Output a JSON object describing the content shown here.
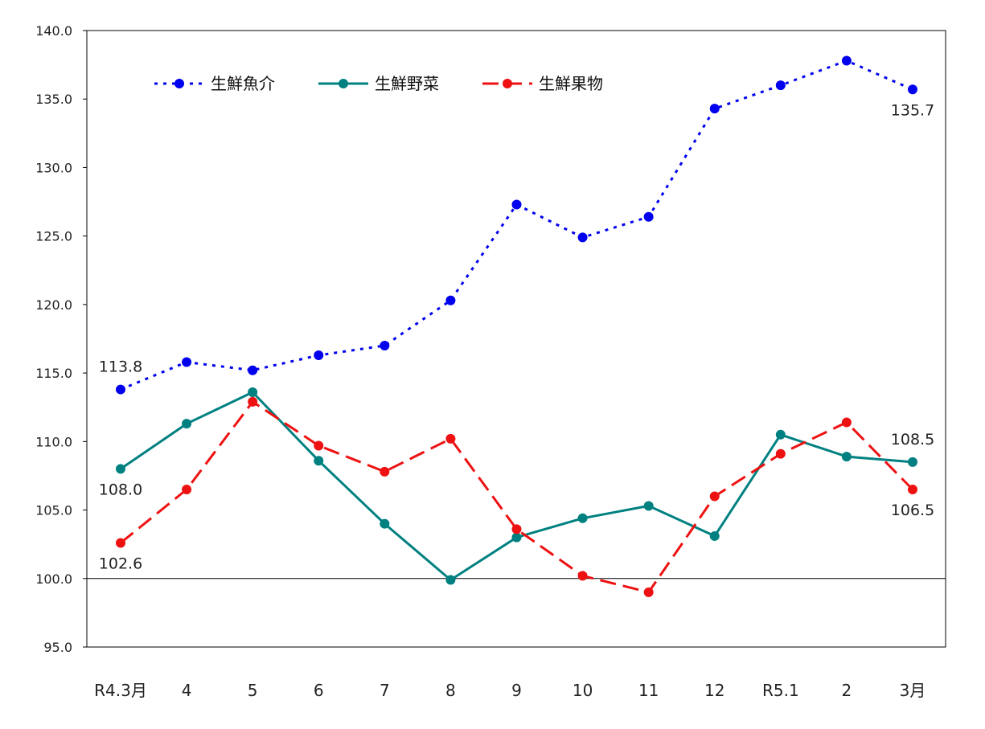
{
  "chart_data": {
    "type": "line",
    "title": "",
    "xlabel": "",
    "ylabel": "",
    "categories": [
      "R4.3月",
      "4",
      "5",
      "6",
      "7",
      "8",
      "9",
      "10",
      "11",
      "12",
      "R5.1",
      "2",
      "3月"
    ],
    "ylim": [
      95.0,
      140.0
    ],
    "yticks": [
      95.0,
      100.0,
      105.0,
      110.0,
      115.0,
      120.0,
      125.0,
      130.0,
      135.0,
      140.0
    ],
    "reference_line": 100.0,
    "grid": false,
    "legend_position": "top-left",
    "series": [
      {
        "name": "生鮮魚介",
        "color": "#0000ee",
        "line_style": "dotted",
        "values": [
          113.8,
          115.8,
          115.2,
          116.3,
          117.0,
          120.3,
          127.3,
          124.9,
          126.4,
          134.3,
          136.0,
          137.8,
          135.7
        ]
      },
      {
        "name": "生鮮野菜",
        "color": "#008080",
        "line_style": "solid",
        "values": [
          108.0,
          111.3,
          113.6,
          108.6,
          104.0,
          99.9,
          103.0,
          104.4,
          105.3,
          103.1,
          110.5,
          108.9,
          108.5
        ]
      },
      {
        "name": "生鮮果物",
        "color": "#ee1111",
        "line_style": "dashed",
        "values": [
          102.6,
          106.5,
          112.9,
          109.7,
          107.8,
          110.2,
          103.6,
          100.2,
          99.0,
          106.0,
          109.1,
          111.4,
          106.5
        ]
      }
    ],
    "data_labels": [
      {
        "series": 0,
        "index": 0,
        "text": "113.8",
        "placement": "above"
      },
      {
        "series": 0,
        "index": 12,
        "text": "135.7",
        "placement": "below"
      },
      {
        "series": 1,
        "index": 0,
        "text": "108.0",
        "placement": "below"
      },
      {
        "series": 1,
        "index": 12,
        "text": "108.5",
        "placement": "above"
      },
      {
        "series": 2,
        "index": 0,
        "text": "102.6",
        "placement": "below"
      },
      {
        "series": 2,
        "index": 12,
        "text": "106.5",
        "placement": "below"
      }
    ]
  }
}
